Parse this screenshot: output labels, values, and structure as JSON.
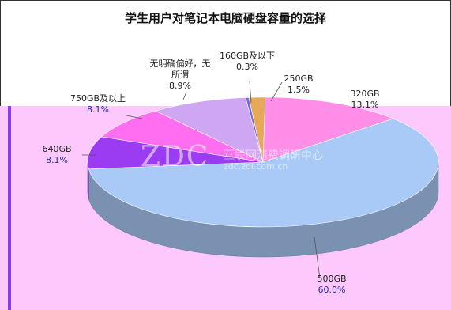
{
  "chart_data": {
    "type": "pie",
    "title": "学生用户对笔记本电脑硬盘容量的选择",
    "slices": [
      {
        "label": "160GB及以下",
        "value_label": "0.3%",
        "value": 0.3,
        "color": "#6c6ce8"
      },
      {
        "label": "250GB",
        "value_label": "1.5%",
        "value": 1.5,
        "color": "#e8a85a"
      },
      {
        "label": "320GB",
        "value_label": "13.1%",
        "value": 13.1,
        "color": "#ff8ee8"
      },
      {
        "label": "500GB",
        "value_label": "60.0%",
        "value": 60.0,
        "color": "#a9c9f7"
      },
      {
        "label": "640GB",
        "value_label": "8.1%",
        "value": 8.1,
        "color": "#9b3cf2"
      },
      {
        "label": "750GB及以上",
        "value_label": "8.1%",
        "value": 8.1,
        "color": "#ff6ef0"
      },
      {
        "label": "无明确偏好，无所谓",
        "value_label": "8.9%",
        "value": 8.9,
        "color": "#cfa6f2"
      }
    ],
    "legend": "none",
    "style": "3d-pie"
  },
  "watermark": {
    "logo": "ZDC",
    "text_cn": "互联网消费调研中心",
    "url": "zdc.zol.com.cn"
  }
}
